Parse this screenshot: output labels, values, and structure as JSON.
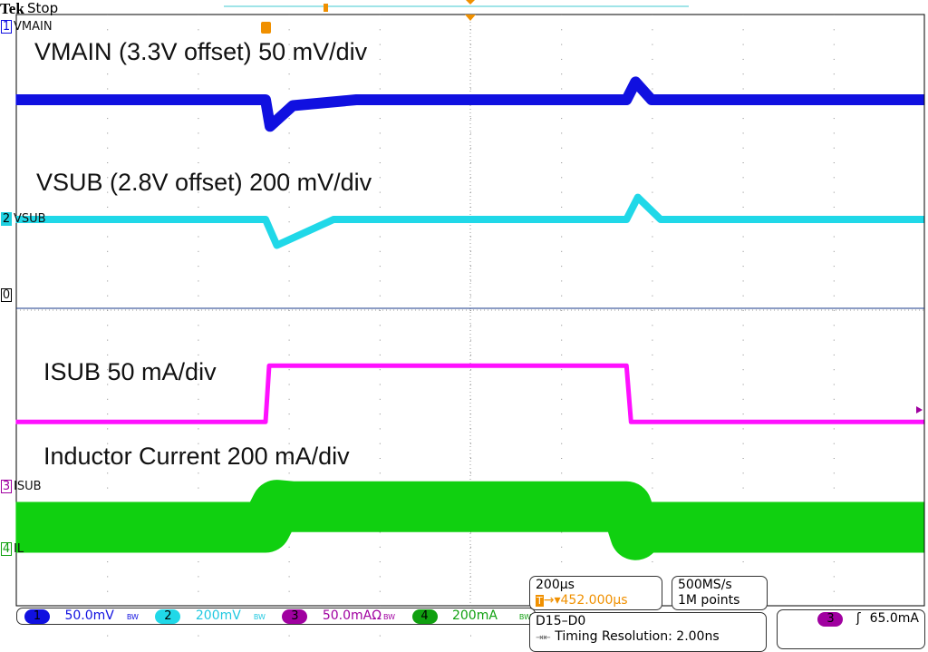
{
  "header": {
    "brand": "Tek",
    "state": "Stop"
  },
  "labels": {
    "vmain": "VMAIN (3.3V offset) 50 mV/div",
    "vsub": "VSUB (2.8V offset) 200 mV/div",
    "isub": "ISUB 50 mA/div",
    "il": "Inductor Current 200 mA/div"
  },
  "channel_markers": [
    {
      "num": "1",
      "name": "VMAIN",
      "color": "#1010e0"
    },
    {
      "num": "2",
      "name": "VSUB",
      "color": "#20d0e0"
    },
    {
      "num": "3",
      "name": "ISUB",
      "color": "#a000a0"
    },
    {
      "num": "4",
      "name": "IL",
      "color": "#10a010"
    },
    {
      "num": "0",
      "name": ""
    }
  ],
  "status": {
    "ch1": {
      "num": "1",
      "scale": "50.0mV",
      "bw": "BW"
    },
    "ch2": {
      "num": "2",
      "scale": "200mV",
      "bw": "BW"
    },
    "ch3": {
      "num": "3",
      "scale": "50.0mAΩ",
      "bw": "BW"
    },
    "ch4": {
      "num": "4",
      "scale": "200mA",
      "bw": "BW"
    },
    "timebase": "200µs",
    "trigger_pos": "452.000µs",
    "sample_rate": "500MS/s",
    "record": "1M points",
    "digital": "D15–D0",
    "timing_res": "Timing Resolution: 2.00ns",
    "trig_source": "3",
    "trig_level": "65.0mA"
  },
  "chart_data": {
    "type": "line",
    "xlabel": "",
    "ylabel": "",
    "x_unit": "µs",
    "x_per_div": 200,
    "grid": true,
    "series": [
      {
        "name": "VMAIN",
        "unit": "mV",
        "per_div": 50,
        "color": "#1010e0",
        "t": [
          -550,
          0,
          10,
          60,
          200,
          795,
          815,
          850,
          1450
        ],
        "v": [
          0,
          0,
          -18,
          -4,
          0,
          0,
          12,
          0,
          0
        ]
      },
      {
        "name": "VSUB",
        "unit": "mV",
        "per_div": 200,
        "color": "#20d8e8",
        "t": [
          -550,
          0,
          25,
          150,
          795,
          820,
          870,
          1450
        ],
        "v": [
          0,
          0,
          -70,
          0,
          0,
          60,
          0,
          0
        ]
      },
      {
        "name": "ISUB",
        "unit": "mA",
        "per_div": 50,
        "color": "#ff10ff",
        "t": [
          -550,
          0,
          8,
          795,
          805,
          1450
        ],
        "v": [
          44,
          44,
          82,
          82,
          44,
          44
        ]
      },
      {
        "name": "IL",
        "unit": "mA",
        "per_div": 200,
        "color": "#10d010",
        "t": [
          -550,
          0,
          25,
          60,
          795,
          815,
          830,
          1450
        ],
        "v": [
          60,
          60,
          120,
          116,
          116,
          40,
          60,
          60
        ]
      }
    ]
  }
}
